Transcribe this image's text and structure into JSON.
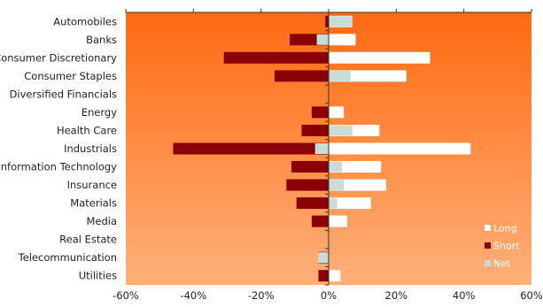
{
  "chart_data": {
    "type": "bar",
    "orientation": "horizontal",
    "categories": [
      "Automobiles",
      "Banks",
      "Consumer Discretionary",
      "Consumer Staples",
      "Diversified Financials",
      "Energy",
      "Health Care",
      "Industrials",
      "Information Technology",
      "Insurance",
      "Materials",
      "Media",
      "Real Estate",
      "Telecommunication",
      "Utilities"
    ],
    "series": [
      {
        "name": "Long",
        "color": "#ffffff",
        "values": [
          7,
          8,
          30,
          23,
          0,
          4.5,
          15,
          42,
          15.5,
          17,
          12.5,
          5.5,
          0,
          0,
          3.5
        ]
      },
      {
        "name": "Short",
        "color": "#8b0000",
        "values": [
          -1,
          -11.5,
          -31,
          -16,
          0,
          -5,
          -8,
          -46,
          -11,
          -12.5,
          -9.5,
          -5,
          0,
          -3,
          -3
        ]
      },
      {
        "name": "Net",
        "color": "#c8ddd7",
        "values": [
          7,
          -3.5,
          0,
          6.5,
          0,
          0,
          7,
          -4,
          4,
          4.5,
          2.5,
          0,
          0,
          -3,
          0
        ]
      }
    ],
    "xlim": [
      -60,
      60
    ],
    "xticks": [
      -60,
      -40,
      -20,
      0,
      20,
      40,
      60
    ],
    "xtick_labels": [
      "-60%",
      "-40%",
      "-20%",
      "0%",
      "20%",
      "40%",
      "60%"
    ],
    "legend_position": "bottom-right",
    "background": "orange-gradient",
    "colors": {
      "gradient_top": "#ff6a10",
      "gradient_bottom": "#ffb07a",
      "axis": "#333333"
    }
  }
}
